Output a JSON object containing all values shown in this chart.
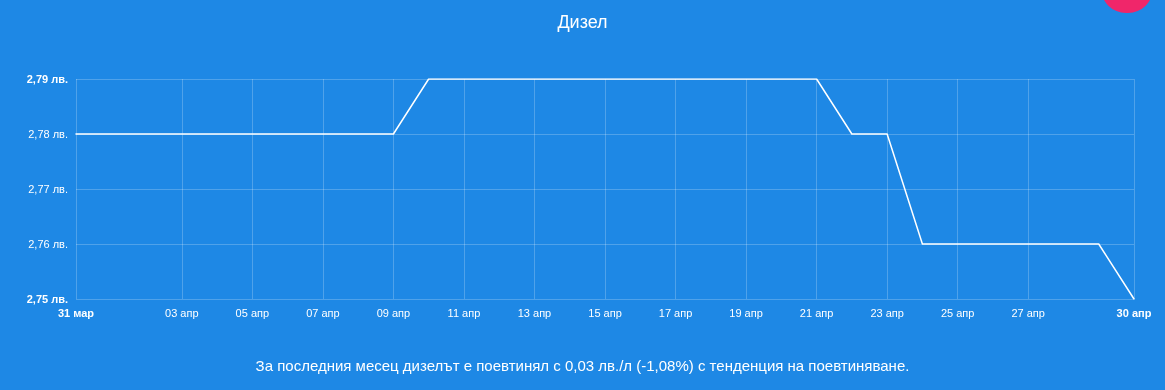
{
  "chart_data": {
    "type": "line",
    "title": "Дизел",
    "annotations": [
      "За последния месец дизелът е поевтинял с 0,03 лв./л (-1,08%) с тенденция на поевтиняване."
    ],
    "x": [
      "--03-31",
      "--04-01",
      "--04-02",
      "--04-03",
      "--04-04",
      "--04-05",
      "--04-06",
      "--04-07",
      "--04-08",
      "--04-09",
      "--04-10",
      "--04-11",
      "--04-12",
      "--04-13",
      "--04-14",
      "--04-15",
      "--04-16",
      "--04-17",
      "--04-18",
      "--04-19",
      "--04-20",
      "--04-21",
      "--04-22",
      "--04-23",
      "--04-24",
      "--04-25",
      "--04-26",
      "--04-27",
      "--04-28",
      "--04-29",
      "--04-30"
    ],
    "series": [
      {
        "color": "#ffffff",
        "values": [
          2.78,
          2.78,
          2.78,
          2.78,
          2.78,
          2.78,
          2.78,
          2.78,
          2.78,
          2.78,
          2.79,
          2.79,
          2.79,
          2.79,
          2.79,
          2.79,
          2.79,
          2.79,
          2.79,
          2.79,
          2.79,
          2.79,
          2.78,
          2.78,
          2.76,
          2.76,
          2.76,
          2.76,
          2.76,
          2.76,
          2.75
        ]
      }
    ],
    "xlim": [
      "--03-31",
      "--04-30"
    ],
    "xticks": [
      {
        "value": "--03-31",
        "label": "31 мар"
      },
      {
        "value": "--04-03",
        "label": "03 апр"
      },
      {
        "value": "--04-05",
        "label": "05 апр"
      },
      {
        "value": "--04-07",
        "label": "07 апр"
      },
      {
        "value": "--04-09",
        "label": "09 апр"
      },
      {
        "value": "--04-11",
        "label": "11 апр"
      },
      {
        "value": "--04-13",
        "label": "13 апр"
      },
      {
        "value": "--04-15",
        "label": "15 апр"
      },
      {
        "value": "--04-17",
        "label": "17 апр"
      },
      {
        "value": "--04-19",
        "label": "19 апр"
      },
      {
        "value": "--04-21",
        "label": "21 апр"
      },
      {
        "value": "--04-23",
        "label": "23 апр"
      },
      {
        "value": "--04-25",
        "label": "25 апр"
      },
      {
        "value": "--04-27",
        "label": "27 апр"
      },
      {
        "value": "--04-30",
        "label": "30 апр"
      }
    ],
    "ylim": [
      2.75,
      2.79
    ],
    "yticks": [
      {
        "value": 2.75,
        "label": "2,75 лв."
      },
      {
        "value": 2.76,
        "label": "2,76 лв."
      },
      {
        "value": 2.77,
        "label": "2,77 лв."
      },
      {
        "value": 2.78,
        "label": "2,78 лв."
      },
      {
        "value": 2.79,
        "label": "2,79 лв."
      }
    ],
    "grid": true,
    "marker": "none",
    "line_style": "solid"
  }
}
